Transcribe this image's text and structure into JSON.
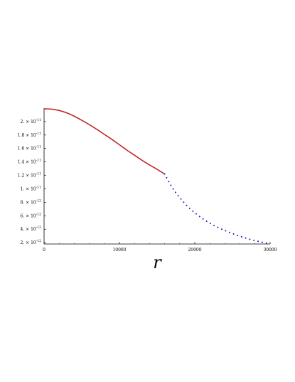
{
  "chart_data": {
    "type": "line",
    "title": "",
    "xlabel": "r",
    "ylabel": "",
    "xlim": [
      0,
      30000
    ],
    "ylim": [
      1.8e-12,
      2.2e-11
    ],
    "x_ticks": [
      {
        "value": 0,
        "label": "0"
      },
      {
        "value": 10000,
        "label": "10000"
      },
      {
        "value": 20000,
        "label": "20000"
      },
      {
        "value": 30000,
        "label": "30000"
      }
    ],
    "y_ticks": [
      {
        "value": 2e-12,
        "mant": "2.",
        "exp": "-12"
      },
      {
        "value": 4e-12,
        "mant": "4.",
        "exp": "-12"
      },
      {
        "value": 6e-12,
        "mant": "6.",
        "exp": "-12"
      },
      {
        "value": 8e-12,
        "mant": "8.",
        "exp": "-12"
      },
      {
        "value": 1e-11,
        "mant": "1.",
        "exp": "-11"
      },
      {
        "value": 1.2e-11,
        "mant": "1.2",
        "exp": "-11"
      },
      {
        "value": 1.4e-11,
        "mant": "1.4",
        "exp": "-11"
      },
      {
        "value": 1.6e-11,
        "mant": "1.6",
        "exp": "-11"
      },
      {
        "value": 1.8e-11,
        "mant": "1.8",
        "exp": "-11"
      },
      {
        "value": 2e-11,
        "mant": "2.",
        "exp": "-11"
      }
    ],
    "times_sign": "×",
    "base_label": "10",
    "series": [
      {
        "color": "#c0282a",
        "style": "solid",
        "x": [
          0,
          1000,
          2000,
          3000,
          4000,
          5000,
          6000,
          7000,
          8000,
          9000,
          10000,
          11000,
          12000,
          13000,
          14000,
          15000,
          16000
        ],
        "y": [
          2.19e-11,
          2.185e-11,
          2.165e-11,
          2.13e-11,
          2.08e-11,
          2.02e-11,
          1.955e-11,
          1.885e-11,
          1.81e-11,
          1.735e-11,
          1.655e-11,
          1.575e-11,
          1.5e-11,
          1.425e-11,
          1.355e-11,
          1.29e-11,
          1.22e-11
        ]
      },
      {
        "color": "#1414c8",
        "style": "dotted",
        "x": [
          16000,
          17000,
          18000,
          19000,
          20000,
          21000,
          22000,
          23000,
          24000,
          25000,
          26000,
          27000,
          28000,
          29000,
          30000
        ],
        "y": [
          1.22e-11,
          1.02e-11,
          8.7e-12,
          7.45e-12,
          6.45e-12,
          5.6e-12,
          4.9e-12,
          4.3e-12,
          3.8e-12,
          3.35e-12,
          2.95e-12,
          2.6e-12,
          2.3e-12,
          2.05e-12,
          1.85e-12
        ]
      }
    ]
  }
}
